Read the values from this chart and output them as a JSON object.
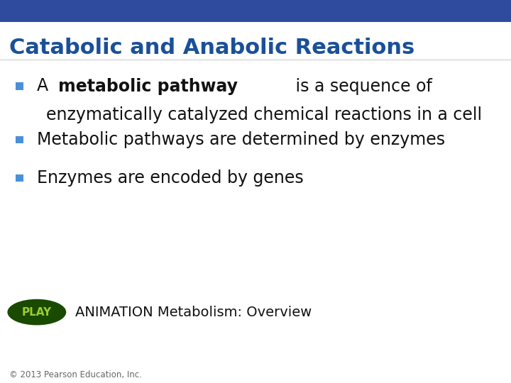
{
  "title": "Catabolic and Anabolic Reactions",
  "title_color": "#1a5099",
  "title_bg_color": "#2e4b9e",
  "title_fontsize": 22,
  "header_bar_color": "#2e4b9e",
  "header_bar_height": 0.058,
  "background_color": "#ffffff",
  "bullet_color": "#4a90d9",
  "background_color2": "#f5f5f5",
  "bullet_points": [
    {
      "line1_pre": "A ",
      "line1_bold": "metabolic pathway",
      "line1_post": " is a sequence of",
      "line2": "enzymatically catalyzed chemical reactions in a cell"
    },
    {
      "line1_pre": "Metabolic pathways are determined by enzymes",
      "line1_bold": null,
      "line1_post": "",
      "line2": null
    },
    {
      "line1_pre": "Enzymes are encoded by genes",
      "line1_bold": null,
      "line1_post": "",
      "line2": null
    }
  ],
  "text_color": "#111111",
  "text_fontsize": 17,
  "play_button_bg": "#1a4a00",
  "play_button_text_color": "#9acd32",
  "play_label": "PLAY",
  "animation_text": "ANIMATION Metabolism: Overview",
  "animation_fontsize": 14,
  "footer_text": "© 2013 Pearson Education, Inc.",
  "footer_fontsize": 8.5,
  "footer_color": "#666666"
}
